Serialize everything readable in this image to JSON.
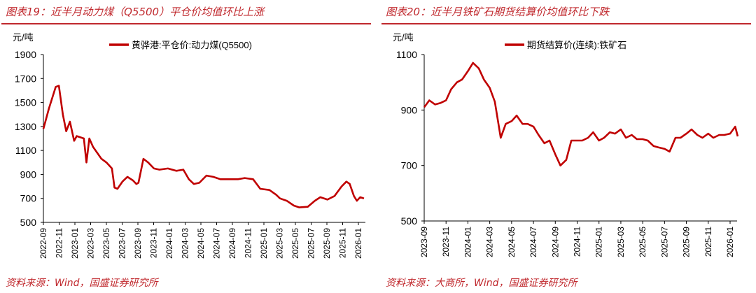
{
  "charts": [
    {
      "title": "图表19：近半月动力煤（Q5500）平仓价均值环比上涨",
      "source": "资料来源：Wind，国盛证券研究所"
    },
    {
      "title": "图表20：近半月铁矿石期货结算价均值环比下跌",
      "source": "资料来源：大商所，Wind，国盛证券研究所"
    }
  ],
  "chart_data": [
    {
      "type": "line",
      "ylabel": "元/吨",
      "ylim": [
        500,
        1900
      ],
      "yticks": [
        "500",
        "700",
        "900",
        "1100",
        "1300",
        "1500",
        "1700",
        "1900"
      ],
      "xticks": [
        "2022-09",
        "2022-11",
        "2023-01",
        "2023-03",
        "2023-05",
        "2023-07",
        "2023-09",
        "2023-11",
        "2024-01",
        "2024-03",
        "2024-05",
        "2024-07",
        "2024-09",
        "2024-11",
        "2025-01",
        "2025-03",
        "2025-05",
        "2025-07",
        "2025-09",
        "2025-11",
        "2026-01"
      ],
      "legend": "top-center",
      "grid": false,
      "color": "#c00000",
      "series": [
        {
          "name": "黄骅港:平仓价:动力煤(Q5500)",
          "x": [
            "2022-09-01",
            "2022-09-22",
            "2022-10-18",
            "2022-10-30",
            "2022-11-15",
            "2022-11-28",
            "2022-12-12",
            "2022-12-28",
            "2023-01-08",
            "2023-02-05",
            "2023-02-15",
            "2023-02-26",
            "2023-03-10",
            "2023-04-12",
            "2023-05-01",
            "2023-05-22",
            "2023-06-02",
            "2023-06-13",
            "2023-07-02",
            "2023-07-21",
            "2023-08-12",
            "2023-08-25",
            "2023-09-03",
            "2023-09-22",
            "2023-10-10",
            "2023-11-02",
            "2023-11-23",
            "2023-12-25",
            "2024-01-27",
            "2024-02-24",
            "2024-03-15",
            "2024-04-04",
            "2024-04-25",
            "2024-05-22",
            "2024-06-18",
            "2024-07-15",
            "2024-08-25",
            "2024-09-22",
            "2024-10-18",
            "2024-11-20",
            "2024-12-17",
            "2025-01-22",
            "2025-02-18",
            "2025-03-02",
            "2025-03-28",
            "2025-04-25",
            "2025-05-16",
            "2025-06-18",
            "2025-07-15",
            "2025-08-06",
            "2025-09-03",
            "2025-09-30",
            "2025-10-27",
            "2025-11-15",
            "2025-11-28",
            "2025-12-14",
            "2025-12-25",
            "2026-01-08",
            "2026-01-22"
          ],
          "y": [
            1280,
            1450,
            1630,
            1640,
            1400,
            1260,
            1340,
            1180,
            1220,
            1200,
            1000,
            1200,
            1130,
            1030,
            1000,
            950,
            790,
            780,
            840,
            880,
            850,
            820,
            830,
            1030,
            1000,
            950,
            940,
            950,
            930,
            940,
            860,
            820,
            830,
            890,
            880,
            860,
            860,
            860,
            870,
            860,
            780,
            770,
            730,
            700,
            680,
            640,
            625,
            630,
            680,
            710,
            690,
            720,
            800,
            840,
            820,
            720,
            680,
            710,
            700
          ]
        }
      ]
    },
    {
      "type": "line",
      "ylabel": "元/吨",
      "ylim": [
        500,
        1100
      ],
      "yticks": [
        "500",
        "700",
        "900",
        "1100"
      ],
      "xticks": [
        "2023-09",
        "2023-11",
        "2024-01",
        "2024-03",
        "2024-05",
        "2024-07",
        "2024-09",
        "2024-11",
        "2025-01",
        "2025-03",
        "2025-05",
        "2025-07",
        "2025-09",
        "2025-11",
        "2026-01"
      ],
      "legend": "top-center",
      "grid": false,
      "color": "#c00000",
      "series": [
        {
          "name": "期货结算价(连续):铁矿石",
          "x": [
            "2023-09-01",
            "2023-09-15",
            "2023-10-01",
            "2023-10-15",
            "2023-11-01",
            "2023-11-15",
            "2023-12-01",
            "2023-12-15",
            "2024-01-01",
            "2024-01-15",
            "2024-02-01",
            "2024-02-15",
            "2024-03-01",
            "2024-03-15",
            "2024-04-01",
            "2024-04-15",
            "2024-05-01",
            "2024-05-15",
            "2024-06-01",
            "2024-06-15",
            "2024-07-01",
            "2024-07-15",
            "2024-08-01",
            "2024-08-15",
            "2024-09-01",
            "2024-09-15",
            "2024-10-01",
            "2024-10-15",
            "2024-11-01",
            "2024-11-15",
            "2024-12-01",
            "2024-12-15",
            "2025-01-01",
            "2025-01-15",
            "2025-02-01",
            "2025-02-15",
            "2025-03-01",
            "2025-03-15",
            "2025-04-01",
            "2025-04-15",
            "2025-05-01",
            "2025-05-15",
            "2025-06-01",
            "2025-06-15",
            "2025-07-01",
            "2025-07-15",
            "2025-08-01",
            "2025-08-15",
            "2025-09-01",
            "2025-09-15",
            "2025-10-01",
            "2025-10-15",
            "2025-11-01",
            "2025-11-15",
            "2025-12-01",
            "2025-12-15",
            "2026-01-01",
            "2026-01-15",
            "2026-01-22"
          ],
          "y": [
            910,
            935,
            920,
            925,
            935,
            975,
            1000,
            1010,
            1040,
            1070,
            1050,
            1010,
            980,
            930,
            800,
            850,
            860,
            880,
            850,
            850,
            840,
            810,
            780,
            790,
            740,
            700,
            720,
            790,
            790,
            790,
            800,
            820,
            790,
            800,
            820,
            815,
            830,
            800,
            810,
            795,
            795,
            790,
            770,
            765,
            760,
            750,
            800,
            800,
            815,
            830,
            810,
            800,
            815,
            800,
            810,
            810,
            815,
            840,
            805
          ]
        }
      ]
    }
  ]
}
